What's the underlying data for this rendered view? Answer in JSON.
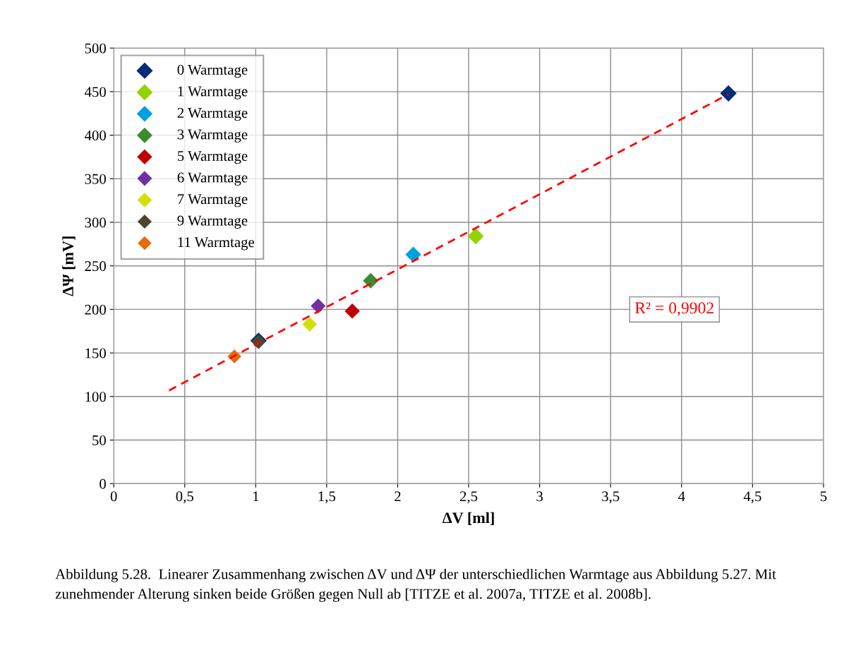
{
  "chart_data": {
    "type": "scatter",
    "xlabel": "ΔV [ml]",
    "ylabel": "ΔΨ [mV]",
    "xlim": [
      0,
      5
    ],
    "xticks": [
      0,
      {
        "value": 0.5,
        "label": "0,5"
      },
      1,
      {
        "value": 1.5,
        "label": "1,5"
      },
      2,
      {
        "value": 2.5,
        "label": "2,5"
      },
      3,
      {
        "value": 3.5,
        "label": "3,5"
      },
      4,
      {
        "value": 4.5,
        "label": "4,5"
      },
      5
    ],
    "ylim": [
      0,
      500
    ],
    "yticks": [
      0,
      50,
      100,
      150,
      200,
      250,
      300,
      350,
      400,
      450,
      500
    ],
    "grid": true,
    "legend": "top left",
    "marker": "diamond",
    "series": [
      {
        "name": "0 Warmtage",
        "color": "#002d7a",
        "x": [
          4.33,
          1.02
        ],
        "values": [
          448,
          164
        ]
      },
      {
        "name": "1 Warmtage",
        "color": "#92d400",
        "x": [
          2.55
        ],
        "values": [
          284
        ]
      },
      {
        "name": "2 Warmtage",
        "color": "#00a0e0",
        "x": [
          2.11
        ],
        "values": [
          263
        ]
      },
      {
        "name": "3 Warmtage",
        "color": "#3a8c2e",
        "x": [
          1.81
        ],
        "values": [
          233
        ]
      },
      {
        "name": "5 Warmtage",
        "color": "#c00000",
        "x": [
          1.68
        ],
        "values": [
          198
        ]
      },
      {
        "name": "6 Warmtage",
        "color": "#7030a0",
        "x": [
          1.44
        ],
        "values": [
          204
        ]
      },
      {
        "name": "7 Warmtage",
        "color": "#d4e000",
        "x": [
          1.38
        ],
        "values": [
          183
        ]
      },
      {
        "name": "9 Warmtage",
        "color": "#4a4632",
        "x": [
          1.02
        ],
        "values": [
          163
        ]
      },
      {
        "name": "11 Warmtage",
        "color": "#e46c0a",
        "x": [
          0.85
        ],
        "values": [
          146
        ]
      },
      {
        "type": "line",
        "color": "#ff0000",
        "line_style": "dashed",
        "marker": "none",
        "x": [
          0.39,
          4.33
        ],
        "values": [
          107,
          447
        ]
      }
    ],
    "annotations": [
      "R² = 0,9902",
      "Abbildung 5.28.  Linearer Zusammenhang zwischen ΔV und ΔΨ der unterschiedlichen Warmtage aus Abbildung 5.27. Mit zunehmender Alterung sinken beide Größen gegen Null ab [TITZE et al. 2007a, TITZE et al. 2008b]."
    ]
  }
}
